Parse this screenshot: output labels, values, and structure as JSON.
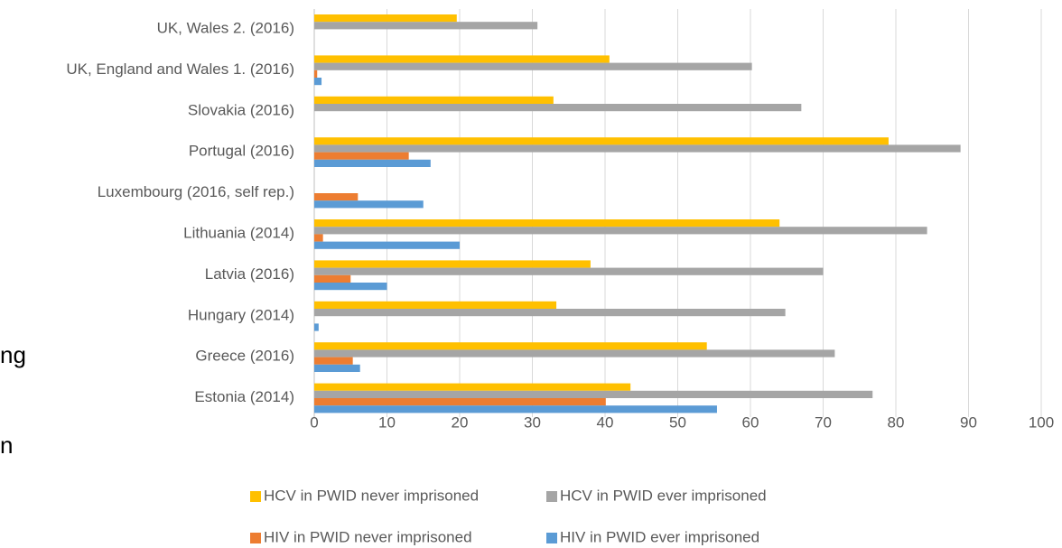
{
  "chart_data": {
    "type": "hbar",
    "annotations": [
      "ng",
      "n"
    ],
    "categories": [
      "UK, Wales  2. (2016)",
      "UK, England and Wales 1. (2016)",
      "Slovakia (2016)",
      "Portugal (2016)",
      "Luxembourg (2016, self rep.)",
      "Lithuania (2014)",
      "Latvia (2016)",
      "Hungary (2014)",
      "Greece (2016)",
      "Estonia (2014)"
    ],
    "series": [
      {
        "name": "HCV in PWID never imprisoned",
        "color": "#ffc000",
        "values": [
          19.6,
          40.6,
          32.9,
          79,
          null,
          64,
          38,
          33.3,
          54,
          43.5
        ]
      },
      {
        "name": "HCV in PWID ever imprisoned",
        "color": "#a5a5a5",
        "values": [
          30.7,
          60.2,
          67,
          88.9,
          null,
          84.3,
          70,
          64.8,
          71.6,
          76.8
        ]
      },
      {
        "name": "HIV in PWID never imprisoned",
        "color": "#ed7d31",
        "values": [
          null,
          0.4,
          null,
          13,
          6,
          1.2,
          5,
          null,
          5.3,
          40.1
        ]
      },
      {
        "name": "HIV in PWID ever imprisoned",
        "color": "#5b9bd5",
        "values": [
          null,
          1.0,
          null,
          16,
          15,
          20,
          10,
          0.6,
          6.3,
          55.4
        ]
      }
    ],
    "xlim": [
      0,
      100
    ],
    "xticks": [
      0,
      10,
      20,
      30,
      40,
      50,
      60,
      70,
      80,
      90,
      100
    ],
    "grid": true
  }
}
